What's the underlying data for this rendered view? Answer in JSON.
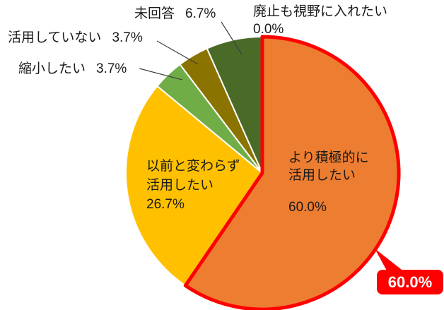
{
  "chart_data": {
    "type": "pie",
    "title": "",
    "start_angle_deg": 0,
    "direction": "clockwise",
    "legend": "none",
    "highlight_color": "#ff0000",
    "slice_divider_color": "#ffffff",
    "slices": [
      {
        "label": "より積極的に活用したい",
        "value": 60.0,
        "display": "60.0%",
        "color": "#ED7D31",
        "highlight": true
      },
      {
        "label": "以前と変わらず活用したい",
        "value": 26.7,
        "display": "26.7%",
        "color": "#FFC000",
        "highlight": false
      },
      {
        "label": "縮小したい",
        "value": 3.7,
        "display": "3.7%",
        "color": "#70AD47",
        "highlight": false
      },
      {
        "label": "活用していない",
        "value": 3.7,
        "display": "3.7%",
        "color": "#8B7300",
        "highlight": false
      },
      {
        "label": "未回答",
        "value": 6.7,
        "display": "6.7%",
        "color": "#4A6B28",
        "highlight": false
      },
      {
        "label": "廃止も視野に入れたい",
        "value": 0.0,
        "display": "0.0%",
        "color": "#4A6B28",
        "highlight": false
      }
    ]
  },
  "labels": {
    "orange_inside": {
      "name_line1": "より積極的に",
      "name_line2": "活用したい",
      "value": "60.0%"
    },
    "yellow_inside": {
      "name_line1": "以前と変わらず",
      "name_line2": "活用したい",
      "value": "26.7%"
    },
    "mikaito": {
      "name": "未回答",
      "value": "6.7%"
    },
    "haishi": {
      "name": "廃止も視野に入れたい",
      "value": "0.0%"
    },
    "katsuyoshiteinai": {
      "name": "活用していない",
      "value": "3.7%"
    },
    "shukusho": {
      "name": "縮小したい",
      "value": "3.7%"
    }
  },
  "callout": {
    "text": "60.0%",
    "background": "#ff0000",
    "text_color": "#ffffff"
  }
}
